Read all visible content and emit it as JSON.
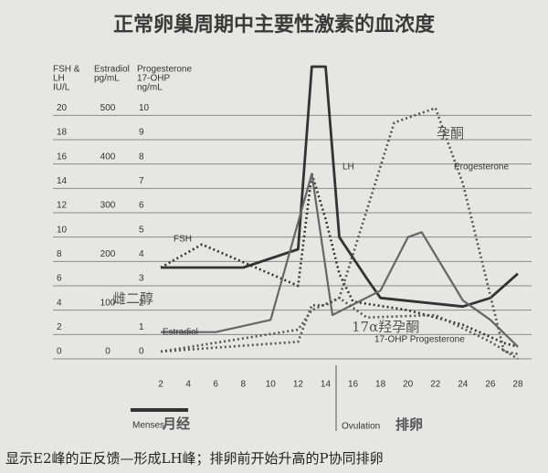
{
  "chart_data": {
    "type": "line",
    "title": "正常卵巢周期中主要性激素的血浓度",
    "caption": "显示E2峰的正反馈—形成LH峰；排卵前开始升高的P协同排卵",
    "y_label": [
      "FSH &",
      "LH",
      "IU/L"
    ],
    "y2_label": [
      "Estradiol",
      "pg/mL"
    ],
    "y3_label": [
      "Progesterone",
      "17-OHP",
      "ng/mL"
    ],
    "xlim": [
      1,
      29
    ],
    "xticks": [
      2,
      4,
      6,
      8,
      10,
      12,
      14,
      16,
      18,
      20,
      22,
      24,
      26,
      28
    ],
    "ylim": [
      0,
      24
    ],
    "yticks": [
      0,
      2,
      4,
      6,
      8,
      10,
      12,
      14,
      16,
      18,
      20
    ],
    "y2lim": [
      0,
      600
    ],
    "y2ticks": [
      0,
      100,
      200,
      300,
      400,
      500
    ],
    "y3lim": [
      0,
      12
    ],
    "y3ticks": [
      0,
      1,
      2,
      3,
      4,
      5,
      6,
      7,
      8,
      9,
      10
    ],
    "grid": true,
    "series": [
      {
        "name": "LH",
        "color": "#333333",
        "style": "solid",
        "axis": "y",
        "x": [
          2,
          8,
          12,
          13,
          14,
          15,
          17,
          18,
          24,
          26,
          28
        ],
        "values": [
          7.5,
          7.5,
          9,
          24,
          24,
          10,
          6.6,
          5,
          4.3,
          5,
          7
        ]
      },
      {
        "name": "FSH",
        "color": "#333333",
        "style": "dotted",
        "axis": "y",
        "x": [
          2,
          5,
          12,
          13,
          14,
          15,
          16,
          20,
          24,
          27,
          28
        ],
        "values": [
          7.5,
          9.4,
          6,
          15.2,
          11.5,
          7,
          4.7,
          4,
          2.8,
          1.3,
          1
        ]
      },
      {
        "name": "Estradiol",
        "color": "#666666",
        "style": "solid",
        "axis": "y2",
        "x": [
          2,
          6,
          10,
          13,
          14.5,
          18,
          20,
          21,
          24,
          26,
          28
        ],
        "values": [
          55,
          55,
          80,
          380,
          90,
          140,
          250,
          260,
          120,
          80,
          25
        ]
      },
      {
        "name": "Progesterone",
        "color": "#555555",
        "style": "dotted",
        "axis": "y3",
        "x": [
          2,
          12,
          13,
          14,
          15,
          17,
          19,
          22,
          24,
          27,
          28
        ],
        "values": [
          0.3,
          0.7,
          2.2,
          2.2,
          2.5,
          6.1,
          9.7,
          10.3,
          7.2,
          0.3,
          0.2
        ]
      },
      {
        "name": "17-OHP Progesterone",
        "color": "#555555",
        "style": "dotted",
        "axis": "y3",
        "x": [
          2,
          12,
          13,
          15,
          17,
          22,
          26,
          28
        ],
        "values": [
          0.3,
          1.2,
          2,
          2.5,
          1.7,
          1.8,
          0.7,
          0
        ]
      }
    ],
    "annotations": [
      "FSH",
      "LH",
      "Progesterone",
      "孕酮",
      "雌二醇",
      "Estradiol",
      "17α羟孕酮",
      "17-OHP Progesterone"
    ],
    "menses": [
      "Menses",
      "月经"
    ],
    "ovulation": [
      "Ovulation",
      "排卵"
    ]
  }
}
